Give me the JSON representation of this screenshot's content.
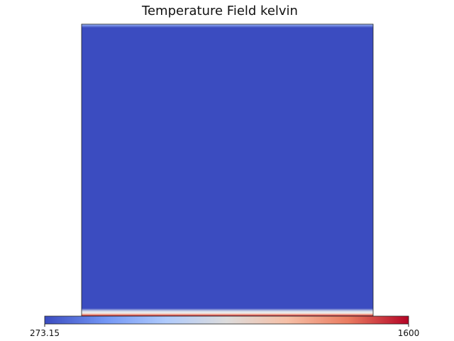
{
  "chart_data": {
    "type": "heatmap",
    "title": "Temperature Field kelvin",
    "field": "Temperature",
    "units": "kelvin",
    "colormap": "coolwarm",
    "colorbar": {
      "orientation": "horizontal",
      "location": "bottom",
      "min": 273.15,
      "max": 1600,
      "min_label": "273.15",
      "max_label": "1600",
      "stops": [
        "#3b4cc0",
        "#7396f5",
        "#b0cbfc",
        "#dddcdc",
        "#f6bfa6",
        "#ea7b60",
        "#b40426"
      ]
    },
    "field_summary": {
      "bulk_temperature": 273.15,
      "top_boundary_temperature": 273.15,
      "bottom_boundary_temperature": 1600
    }
  }
}
